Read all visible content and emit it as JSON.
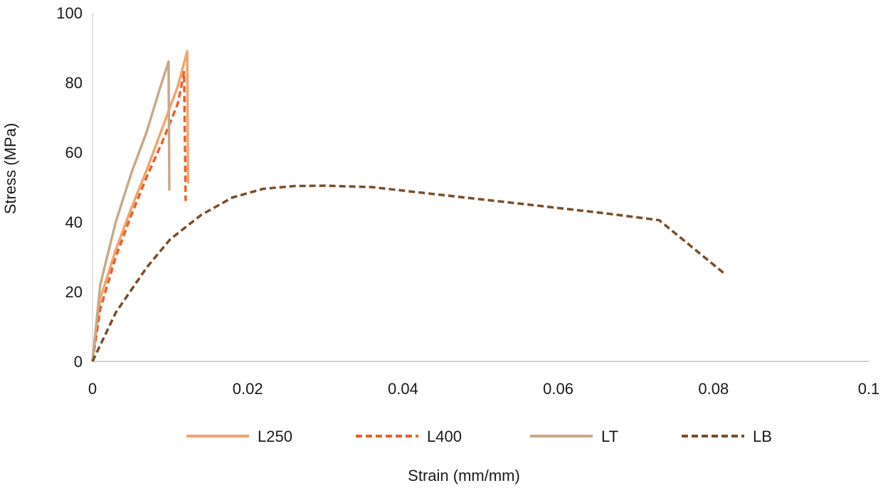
{
  "chart_data": {
    "type": "line",
    "title": "",
    "xlabel": "Strain (mm/mm)",
    "ylabel": "Stress (MPa)",
    "xlim": [
      0,
      0.1
    ],
    "ylim": [
      0,
      100
    ],
    "xticks": [
      0,
      0.02,
      0.04,
      0.06,
      0.08,
      0.1
    ],
    "xtick_labels": [
      "0",
      "0.02",
      "0.04",
      "0.06",
      "0.08",
      "0.1"
    ],
    "yticks": [
      0,
      20,
      40,
      60,
      80,
      100
    ],
    "ytick_labels": [
      "0",
      "20",
      "40",
      "60",
      "80",
      "100"
    ],
    "grid": false,
    "legend_position": "bottom",
    "series": [
      {
        "name": "L250",
        "color": "#F4A46C",
        "dash": "solid",
        "points": [
          [
            0,
            0
          ],
          [
            0.001,
            18
          ],
          [
            0.003,
            32
          ],
          [
            0.005,
            44
          ],
          [
            0.007,
            55
          ],
          [
            0.009,
            67
          ],
          [
            0.011,
            79
          ],
          [
            0.0122,
            89
          ],
          [
            0.0123,
            51
          ]
        ]
      },
      {
        "name": "L400",
        "color": "#E8622A",
        "dash": "dashed",
        "points": [
          [
            0,
            0
          ],
          [
            0.001,
            15
          ],
          [
            0.003,
            30
          ],
          [
            0.005,
            42
          ],
          [
            0.007,
            53
          ],
          [
            0.009,
            63
          ],
          [
            0.011,
            74
          ],
          [
            0.0118,
            83
          ],
          [
            0.012,
            46
          ]
        ]
      },
      {
        "name": "LT",
        "color": "#C8A98A",
        "dash": "solid",
        "points": [
          [
            0,
            0
          ],
          [
            0.001,
            22
          ],
          [
            0.003,
            40
          ],
          [
            0.005,
            54
          ],
          [
            0.007,
            66
          ],
          [
            0.0085,
            77
          ],
          [
            0.0098,
            86
          ],
          [
            0.0099,
            49
          ]
        ]
      },
      {
        "name": "LB",
        "color": "#7A4E28",
        "dash": "dashed",
        "points": [
          [
            0,
            0
          ],
          [
            0.003,
            14
          ],
          [
            0.007,
            27
          ],
          [
            0.01,
            35
          ],
          [
            0.014,
            42
          ],
          [
            0.018,
            47
          ],
          [
            0.022,
            49.5
          ],
          [
            0.026,
            50.3
          ],
          [
            0.03,
            50.4
          ],
          [
            0.036,
            50
          ],
          [
            0.042,
            48.5
          ],
          [
            0.05,
            46.5
          ],
          [
            0.058,
            44.5
          ],
          [
            0.066,
            42.5
          ],
          [
            0.073,
            40.5
          ],
          [
            0.0815,
            25
          ]
        ]
      }
    ]
  }
}
